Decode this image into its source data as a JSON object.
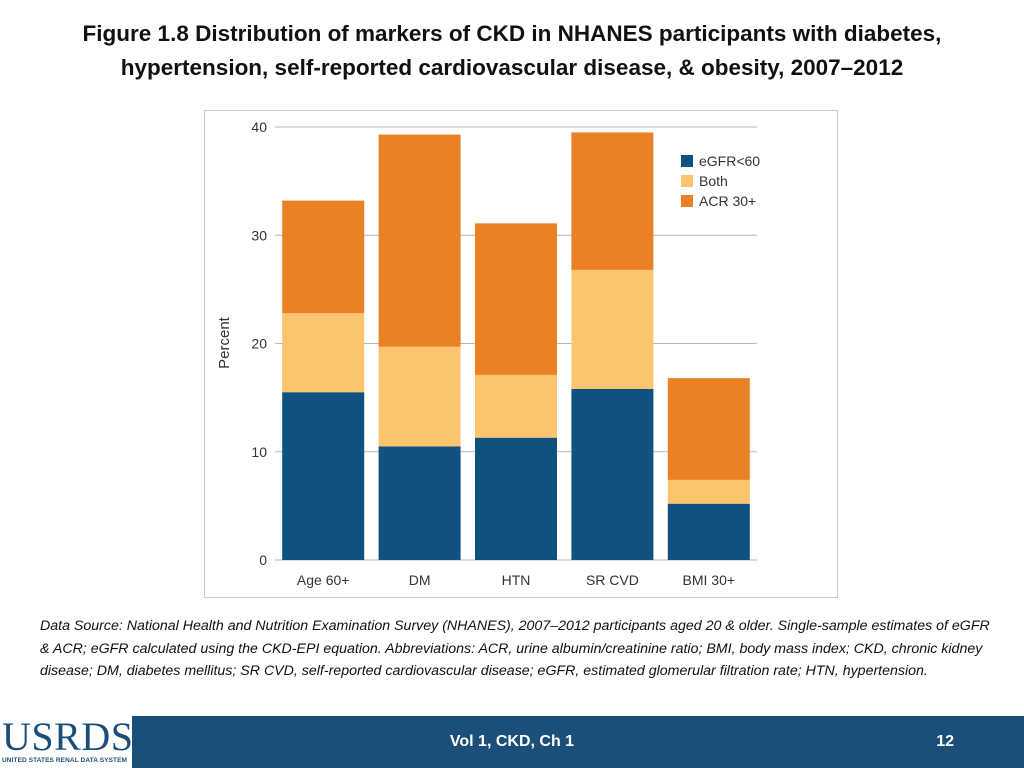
{
  "title": {
    "line1": "Figure 1.8 Distribution of markers of CKD in NHANES participants with diabetes,",
    "line2": "hypertension, self-reported cardiovascular disease, & obesity, 2007–2012"
  },
  "chart_data": {
    "type": "bar",
    "stacked": true,
    "categories": [
      "Age 60+",
      "DM",
      "HTN",
      "SR CVD",
      "BMI 30+"
    ],
    "series": [
      {
        "name": "eGFR<60",
        "color": "#0f5280",
        "values": [
          15.5,
          10.5,
          11.3,
          15.8,
          5.2
        ]
      },
      {
        "name": "Both",
        "color": "#fcc56d",
        "values": [
          7.3,
          9.2,
          5.8,
          11.0,
          2.2
        ]
      },
      {
        "name": "ACR 30+",
        "color": "#eb8125",
        "values": [
          10.4,
          19.6,
          14.0,
          12.7,
          9.4
        ]
      }
    ],
    "ylabel": "Percent",
    "xlabel": "",
    "ylim": [
      0,
      40
    ],
    "yticks": [
      0,
      10,
      20,
      30,
      40
    ],
    "grid": true,
    "legend_position": "top-right"
  },
  "notes": "Data Source: National Health and Nutrition Examination Survey (NHANES), 2007–2012 participants aged 20 & older. Single-sample estimates of eGFR & ACR; eGFR calculated using the CKD-EPI equation. Abbreviations: ACR, urine albumin/creatinine ratio; BMI, body mass index; CKD, chronic kidney disease; DM, diabetes mellitus; SR CVD, self-reported cardiovascular disease; eGFR, estimated glomerular filtration rate; HTN, hypertension.",
  "footer": {
    "logo_text": "USRDS",
    "logo_subtitle": "UNITED STATES RENAL DATA SYSTEM",
    "center_text": "Vol 1, CKD, Ch 1",
    "page_number": "12",
    "bar_color": "#1b4f79"
  }
}
